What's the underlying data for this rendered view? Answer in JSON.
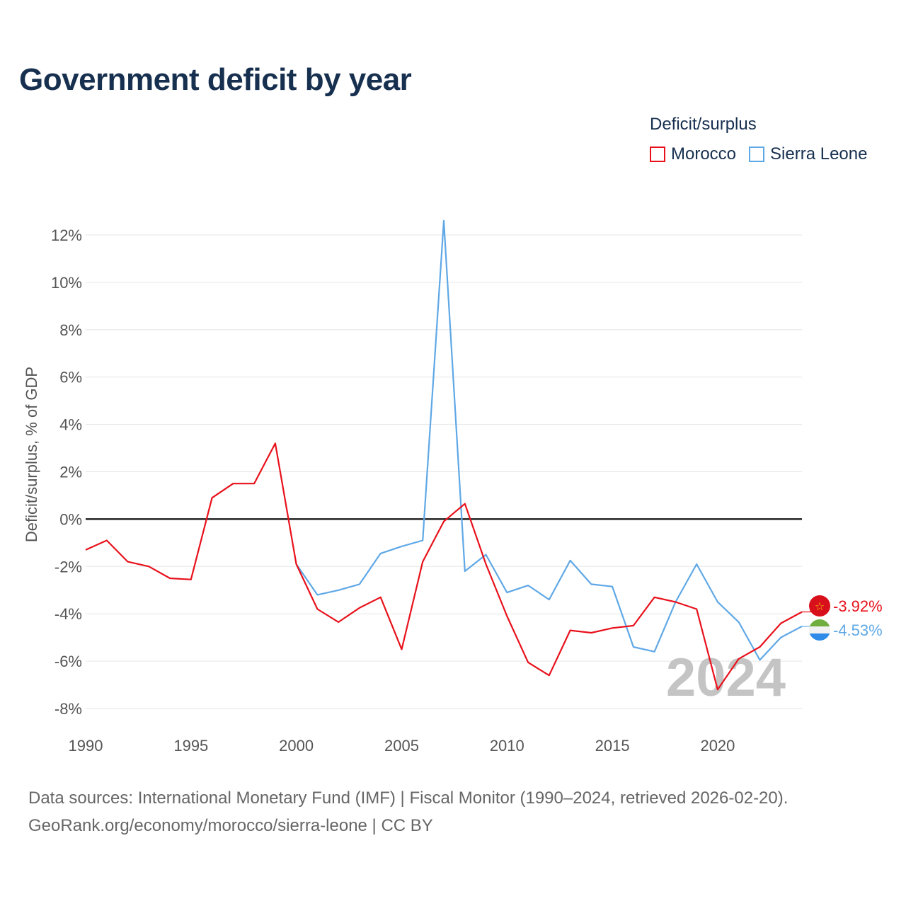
{
  "title": "Government deficit by year",
  "legend": {
    "title": "Deficit/surplus",
    "items": [
      {
        "label": "Morocco",
        "color": "#e8111b"
      },
      {
        "label": "Sierra Leone",
        "color": "#5fa8e6"
      }
    ]
  },
  "source": {
    "line1": "Data sources: International Monetary Fund (IMF) | Fiscal Monitor (1990–2024, retrieved 2026-02-20).",
    "line2": "GeoRank.org/economy/morocco/sierra-leone | CC BY"
  },
  "chart_data": {
    "type": "line",
    "title": "Government deficit by year",
    "xlabel": "",
    "ylabel": "Deficit/surplus, % of GDP",
    "xlim": [
      1990,
      2024
    ],
    "ylim": [
      -8,
      12
    ],
    "x_ticks": [
      1990,
      1995,
      2000,
      2005,
      2010,
      2015,
      2020
    ],
    "y_ticks": [
      12,
      10,
      8,
      6,
      4,
      2,
      0,
      -2,
      -4,
      -6,
      -8
    ],
    "y_tick_labels": [
      "12%",
      "10%",
      "8%",
      "6%",
      "4%",
      "2%",
      "0%",
      "-2%",
      "-4%",
      "-6%",
      "-8%"
    ],
    "year_watermark": "2024",
    "series": [
      {
        "name": "Morocco",
        "color": "#e8111b",
        "end_label": "-3.92%",
        "x": [
          1990,
          1991,
          1992,
          1993,
          1994,
          1995,
          1996,
          1997,
          1998,
          1999,
          2000,
          2001,
          2002,
          2003,
          2004,
          2005,
          2006,
          2007,
          2008,
          2009,
          2010,
          2011,
          2012,
          2013,
          2014,
          2015,
          2016,
          2017,
          2018,
          2019,
          2020,
          2021,
          2022,
          2023,
          2024
        ],
        "values": [
          -1.3,
          -0.9,
          -1.8,
          -2.0,
          -2.5,
          -2.55,
          0.9,
          1.5,
          1.5,
          3.2,
          -1.9,
          -3.8,
          -4.35,
          -3.75,
          -3.3,
          -5.5,
          -1.8,
          -0.1,
          0.65,
          -1.9,
          -4.1,
          -6.05,
          -6.6,
          -4.7,
          -4.8,
          -4.6,
          -4.5,
          -3.3,
          -3.5,
          -3.8,
          -7.2,
          -5.9,
          -5.4,
          -4.4,
          -3.92
        ]
      },
      {
        "name": "Sierra Leone",
        "color": "#5fa8e6",
        "end_label": "-4.53%",
        "x": [
          2000,
          2001,
          2002,
          2003,
          2004,
          2005,
          2006,
          2007,
          2008,
          2009,
          2010,
          2011,
          2012,
          2013,
          2014,
          2015,
          2016,
          2017,
          2018,
          2019,
          2020,
          2021,
          2022,
          2023,
          2024
        ],
        "values": [
          -1.9,
          -3.2,
          -3.0,
          -2.75,
          -1.45,
          -1.15,
          -0.9,
          12.6,
          -2.2,
          -1.5,
          -3.1,
          -2.8,
          -3.4,
          -1.75,
          -2.75,
          -2.85,
          -5.4,
          -5.6,
          -3.5,
          -1.9,
          -3.5,
          -4.35,
          -5.95,
          -5.0,
          -4.53
        ]
      }
    ]
  }
}
